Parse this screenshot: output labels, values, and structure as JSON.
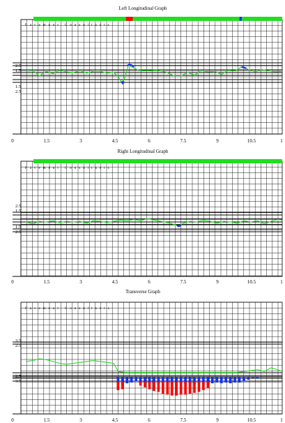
{
  "chart_data": [
    {
      "type": "line",
      "title": "Left Longitudinal Graph",
      "watermark": "Pavement Consultants",
      "xlim": [
        0,
        12
      ],
      "xticks": [
        "0",
        "1.5",
        "3",
        "4.5",
        "6",
        "7.5",
        "9",
        "10.5",
        "1"
      ],
      "ylabels": [
        "2.5",
        "1.5",
        "1.5",
        "2.5"
      ],
      "status_bar": {
        "color": "#22dd22",
        "markers": [
          {
            "x": 5.05,
            "w": 0.3,
            "color": "#ff0000"
          },
          {
            "x": 10.1,
            "w": 0.1,
            "color": "#1030ff"
          }
        ]
      },
      "series": [
        {
          "color": "#22dd22",
          "x": [
            0.6,
            0.9,
            1.2,
            1.5,
            1.8,
            2.1,
            2.4,
            2.7,
            3.0,
            3.3,
            3.6,
            3.9,
            4.2,
            4.5,
            4.7,
            4.85,
            5.0,
            5.15,
            5.3,
            5.6,
            6.0,
            6.4,
            6.8,
            7.2,
            7.5,
            7.8,
            8.1,
            8.4,
            8.7,
            9.0,
            9.3,
            9.6,
            9.9,
            10.2,
            10.5,
            10.8,
            11.1,
            11.4,
            11.7,
            12.0
          ],
          "y": [
            0.2,
            0.3,
            -0.5,
            0.2,
            -0.2,
            0.4,
            0.1,
            0.0,
            0.3,
            -0.1,
            0.2,
            0.2,
            -0.1,
            0.0,
            -0.6,
            -1.6,
            -0.8,
            1.2,
            0.9,
            0.4,
            0.3,
            0.4,
            0.1,
            -0.5,
            -0.5,
            0.0,
            -0.4,
            0.3,
            0.1,
            0.2,
            -0.3,
            0.4,
            0.3,
            0.9,
            0.5,
            0.1,
            0.5,
            0.3,
            0.1,
            0.2
          ]
        }
      ],
      "anomalies": [
        {
          "x": [
            4.85,
            4.9,
            4.95
          ],
          "y": [
            -1.4,
            -1.7,
            -1.4
          ],
          "color": "#1030ff"
        },
        {
          "x": [
            5.1,
            5.2,
            5.3,
            5.4
          ],
          "y": [
            1.1,
            1.3,
            1.2,
            0.9
          ],
          "color": "#1030ff"
        },
        {
          "x": [
            10.2,
            10.3,
            10.4
          ],
          "y": [
            0.9,
            0.8,
            0.7
          ],
          "color": "#1030ff"
        }
      ]
    },
    {
      "type": "line",
      "title": "Right Longitudinal Graph",
      "watermark": "Pavement Consultants",
      "xlim": [
        0,
        12
      ],
      "xticks": [
        "0",
        "1.5",
        "3",
        "4.5",
        "6",
        "7.5",
        "9",
        "10.5",
        "1"
      ],
      "ylabels": [
        "2.5",
        "1.5",
        "1.5",
        "2.5"
      ],
      "status_bar": {
        "color": "#22dd22",
        "markers": []
      },
      "series": [
        {
          "color": "#22dd22",
          "x": [
            0.6,
            0.9,
            1.2,
            1.5,
            1.8,
            2.1,
            2.4,
            2.7,
            3.0,
            3.3,
            3.6,
            3.9,
            4.2,
            4.5,
            4.8,
            5.1,
            5.4,
            5.7,
            6.0,
            6.3,
            6.6,
            6.9,
            7.2,
            7.4,
            7.6,
            7.9,
            8.2,
            8.5,
            8.8,
            9.1,
            9.4,
            9.7,
            10.0,
            10.3,
            10.6,
            10.9,
            11.2,
            11.5,
            11.8,
            12.0
          ],
          "y": [
            0.0,
            -0.3,
            0.1,
            0.0,
            0.2,
            -0.1,
            0.1,
            0.0,
            0.1,
            -0.2,
            0.2,
            0.1,
            -0.1,
            0.1,
            0.3,
            0.2,
            0.4,
            0.2,
            0.5,
            0.3,
            0.1,
            -0.1,
            -0.4,
            -0.6,
            -0.2,
            0.1,
            0.0,
            0.3,
            0.1,
            -0.2,
            0.1,
            0.0,
            -0.2,
            0.2,
            0.0,
            0.2,
            -0.3,
            0.1,
            0.4,
            0.3
          ]
        }
      ],
      "anomalies": [
        {
          "x": [
            7.3,
            7.4,
            7.5
          ],
          "y": [
            -0.5,
            -0.7,
            -0.5
          ],
          "color": "#1030ff"
        }
      ]
    },
    {
      "type": "area",
      "title": "Transverse Graph",
      "watermark": "Pavement Consultants",
      "xlim": [
        0,
        12
      ],
      "xticks": [
        "0",
        "1.5",
        "3",
        "4.5",
        "6",
        "7.5",
        "9",
        "10.5",
        "1"
      ],
      "ylabels": [
        "3.5",
        "2.5",
        "2.5",
        "3.5"
      ],
      "series": [
        {
          "color": "#22dd22",
          "x": [
            0.6,
            0.9,
            1.2,
            1.5,
            1.8,
            2.1,
            2.4,
            2.7,
            3.0,
            3.3,
            3.6,
            3.9,
            4.2,
            4.5,
            4.7,
            5.0,
            5.5,
            6.0,
            6.5,
            7.0,
            7.5,
            8.0,
            8.5,
            9.0,
            9.5,
            10.0,
            10.3,
            10.6,
            10.9,
            11.2,
            11.5,
            11.8,
            12.0
          ],
          "y": [
            1.7,
            1.8,
            2.0,
            1.9,
            1.7,
            1.5,
            1.4,
            1.5,
            1.6,
            1.7,
            1.8,
            1.7,
            1.6,
            1.5,
            0.6,
            0.5,
            0.5,
            0.5,
            0.5,
            0.5,
            0.5,
            0.5,
            0.5,
            0.5,
            0.5,
            0.5,
            0.6,
            0.7,
            0.8,
            0.6,
            1.0,
            0.8,
            0.6
          ]
        }
      ],
      "bars_blue": {
        "color": "#1030ff",
        "x": [
          4.7,
          4.9,
          5.1,
          5.3,
          5.5,
          5.7,
          5.9,
          6.1,
          6.3,
          6.5,
          6.7,
          6.9,
          7.1,
          7.3,
          7.5,
          7.7,
          7.9,
          8.1,
          8.3,
          8.5,
          8.7,
          8.9,
          9.1,
          9.3,
          9.5,
          9.7,
          9.9,
          10.1,
          10.3,
          10.5,
          10.7,
          10.9
        ],
        "y": [
          0.8,
          0.9,
          0.7,
          0.6,
          0.5,
          0.7,
          0.6,
          0.7,
          0.7,
          0.8,
          0.7,
          0.8,
          0.8,
          0.8,
          0.8,
          0.8,
          0.8,
          0.8,
          0.7,
          0.8,
          0.8,
          0.7,
          0.6,
          0.7,
          0.6,
          0.7,
          0.6,
          0.6,
          0.5,
          0.3,
          0.1,
          0.2
        ]
      },
      "bars_red": {
        "color": "#ff0000",
        "x": [
          4.7,
          4.9,
          5.7,
          5.9,
          6.1,
          6.3,
          6.5,
          6.7,
          6.9,
          7.1,
          7.3,
          7.5,
          7.7,
          7.9,
          8.1,
          8.3,
          8.5,
          8.7
        ],
        "y": [
          0.9,
          0.8,
          0.4,
          0.6,
          0.8,
          1.0,
          1.1,
          1.3,
          1.4,
          1.5,
          1.5,
          1.4,
          1.4,
          1.3,
          1.2,
          1.1,
          0.9,
          0.7
        ]
      }
    }
  ]
}
